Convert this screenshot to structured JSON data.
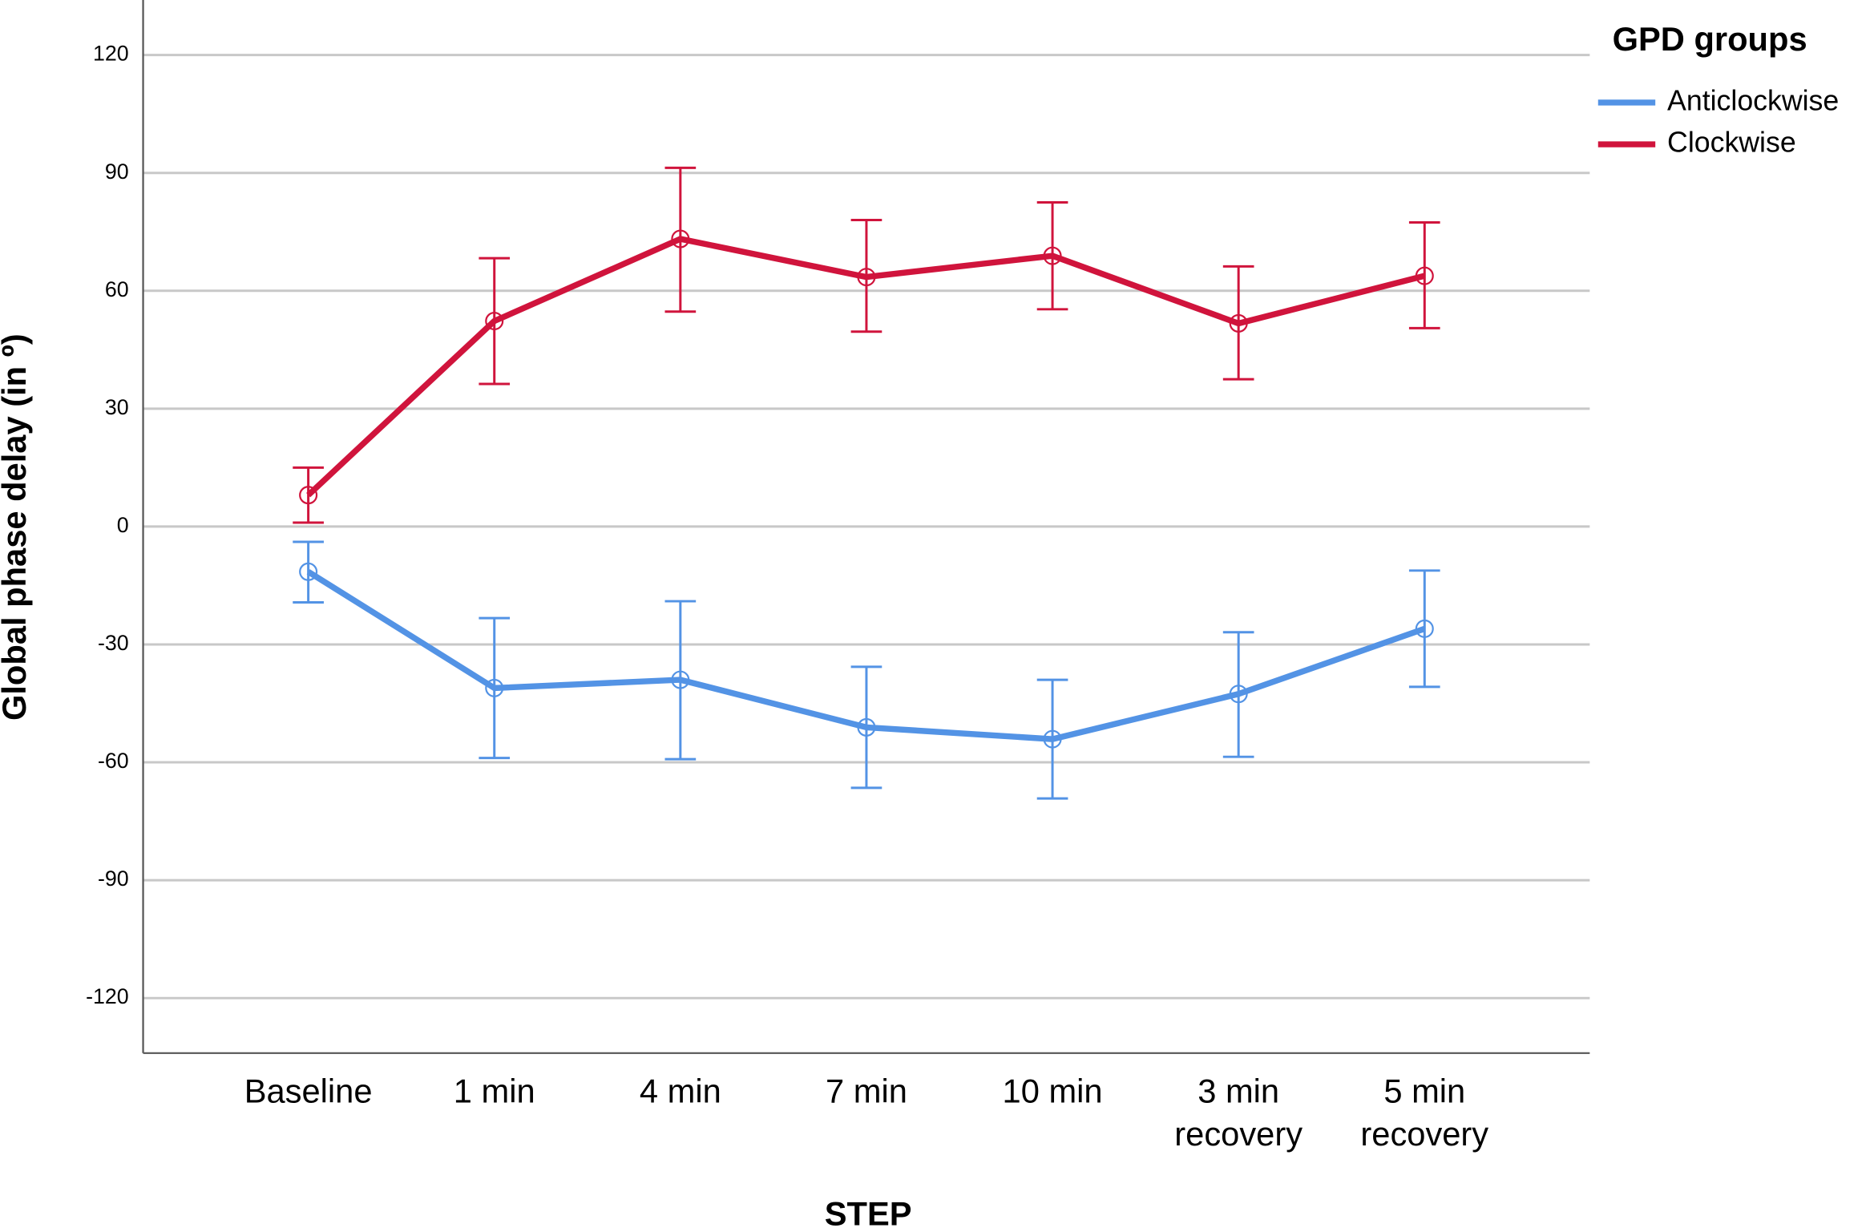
{
  "chart_data": {
    "type": "line",
    "x_label": "STEP",
    "y_label": "Global phase delay (in º)",
    "legend_title": "GPD groups",
    "legend_position": "right",
    "grid": true,
    "categories": [
      "Baseline",
      "1 min",
      "4 min",
      "7 min",
      "10 min",
      "3 min recovery",
      "5 min recovery"
    ],
    "ylim": [
      -134,
      134
    ],
    "yticks": [
      -120,
      -90,
      -60,
      -30,
      0,
      30,
      60,
      90,
      120
    ],
    "series": [
      {
        "name": "Anticlockwise",
        "color": "#5393e5",
        "values": [
          -11.5,
          -41.1,
          -39,
          -51.1,
          -54.1,
          -42.6,
          -26
        ],
        "ci_low": [
          -19.3,
          -58.9,
          -59.2,
          -66.5,
          -69.2,
          -58.6,
          -40.8
        ],
        "ci_high": [
          -3.9,
          -23.3,
          -19,
          -35.7,
          -39,
          -26.9,
          -11.2
        ]
      },
      {
        "name": "Clockwise",
        "color": "#d0143c",
        "values": [
          8,
          52.3,
          73.2,
          63.5,
          68.9,
          51.7,
          63.8
        ],
        "ci_low": [
          1,
          36.3,
          54.7,
          49.6,
          55.3,
          37.5,
          50.5
        ],
        "ci_high": [
          15,
          68.3,
          91.3,
          78,
          82.5,
          66.2,
          77.4
        ]
      }
    ]
  }
}
